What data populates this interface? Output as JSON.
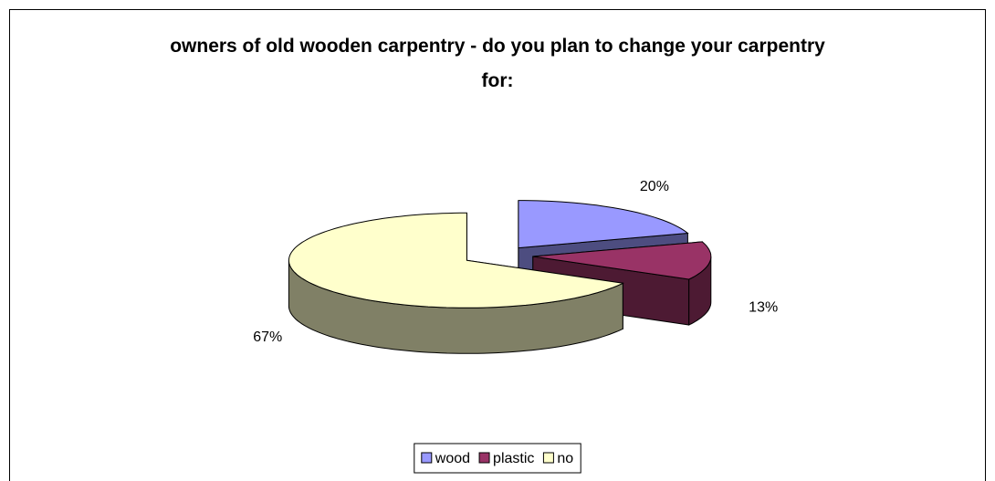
{
  "chart_data": {
    "type": "pie",
    "title": "owners of old wooden carpentry - do you plan to change your carpentry for:",
    "categories": [
      "wood",
      "plastic",
      "no"
    ],
    "values": [
      20,
      13,
      67
    ],
    "value_labels": [
      "20%",
      "13%",
      "67%"
    ],
    "colors": [
      "#9999ff",
      "#993366",
      "#ffffcc"
    ],
    "legend": "bottom"
  }
}
